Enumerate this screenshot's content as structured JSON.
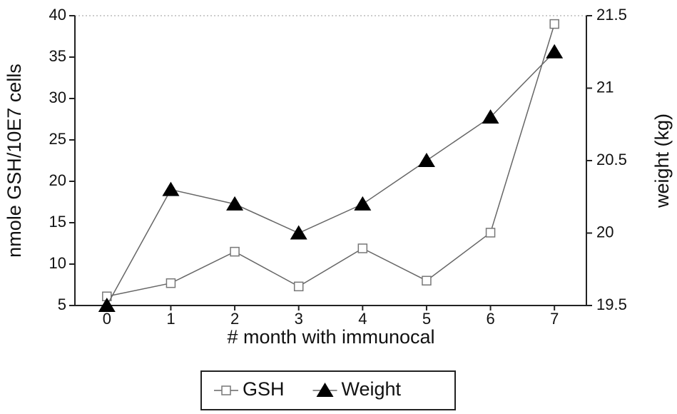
{
  "chart_data": {
    "type": "line",
    "x_label": "# month with immunocal",
    "y_label": "nmole GSH/10E7 cells",
    "y2_label": "weight (kg)",
    "x": [
      0,
      1,
      2,
      3,
      4,
      5,
      6,
      7
    ],
    "xlim": [
      -0.5,
      7.5
    ],
    "xticks": [
      0,
      1,
      2,
      3,
      4,
      5,
      6,
      7
    ],
    "ylim": [
      5,
      40
    ],
    "yticks": [
      5,
      10,
      15,
      20,
      25,
      30,
      35,
      40
    ],
    "y2lim": [
      19.5,
      21.5
    ],
    "y2ticks": [
      19.5,
      20,
      20.5,
      21,
      21.5
    ],
    "series": [
      {
        "name": "GSH",
        "color": "#777777",
        "marker": "square",
        "values": [
          6.1,
          7.7,
          11.5,
          7.3,
          11.9,
          8.0,
          13.8,
          39
        ]
      },
      {
        "name": "Weight",
        "color": "#000000",
        "marker": "triangle",
        "axis": "y2",
        "values": [
          19.5,
          20.3,
          20.2,
          20.0,
          20.2,
          20.5,
          20.8,
          21.25
        ]
      }
    ]
  }
}
